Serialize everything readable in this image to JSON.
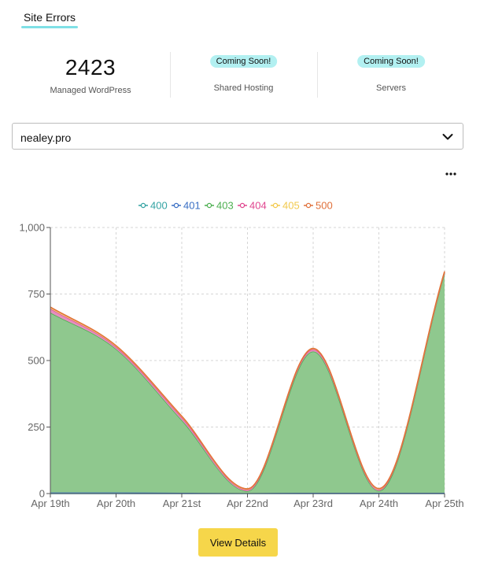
{
  "tabs": {
    "active_label": "Site Errors"
  },
  "stats": [
    {
      "value": "2423",
      "label": "Managed WordPress"
    },
    {
      "badge": "Coming Soon!",
      "label": "Shared Hosting"
    },
    {
      "badge": "Coming Soon!",
      "label": "Servers"
    }
  ],
  "site_select": {
    "value": "nealey.pro"
  },
  "more_icon": "more-horizontal-icon",
  "button": {
    "label": "View Details"
  },
  "colors": {
    "accent": "#7fe0e6",
    "badge": "#b2f0f1",
    "button": "#f6d64a"
  },
  "chart_data": {
    "type": "area",
    "stacked": true,
    "smooth": true,
    "x": [
      "Apr 19th",
      "Apr 20th",
      "Apr 21st",
      "Apr 22nd",
      "Apr 23rd",
      "Apr 24th",
      "Apr 25th"
    ],
    "ylim": [
      0,
      1000
    ],
    "yticks": [
      0,
      250,
      500,
      750,
      1000
    ],
    "ytick_labels": [
      "0",
      "250",
      "500",
      "750",
      "1,000"
    ],
    "grid": true,
    "legend_position": "top",
    "series": [
      {
        "name": "400",
        "color": "#33a3a3",
        "values": [
          0,
          0,
          0,
          0,
          0,
          0,
          0
        ]
      },
      {
        "name": "401",
        "color": "#3a6fc4",
        "values": [
          4,
          4,
          3,
          2,
          3,
          3,
          3
        ]
      },
      {
        "name": "403",
        "color": "#4caf50",
        "values": [
          676,
          539,
          273,
          7,
          531,
          7,
          825
        ]
      },
      {
        "name": "404",
        "color": "#e0458f",
        "values": [
          15,
          8,
          10,
          5,
          8,
          5,
          3
        ]
      },
      {
        "name": "405",
        "color": "#f2c94c",
        "values": [
          5,
          4,
          4,
          3,
          3,
          3,
          3
        ]
      },
      {
        "name": "500",
        "color": "#e0703a",
        "values": [
          1,
          1,
          1,
          1,
          1,
          1,
          1
        ]
      }
    ]
  }
}
